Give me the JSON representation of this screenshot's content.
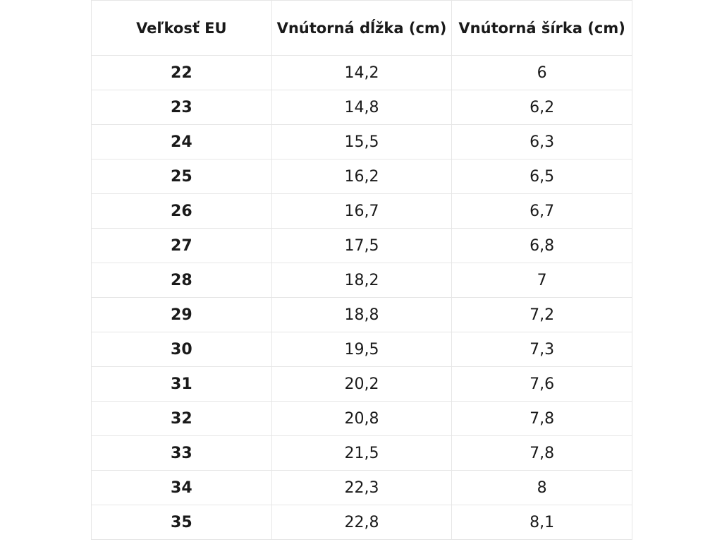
{
  "table": {
    "headers": [
      "Veľkosť EU",
      "Vnútorná dĺžka (cm)",
      "Vnútorná šírka (cm)"
    ],
    "rows": [
      {
        "size": "22",
        "length": "14,2",
        "width": "6"
      },
      {
        "size": "23",
        "length": "14,8",
        "width": "6,2"
      },
      {
        "size": "24",
        "length": "15,5",
        "width": "6,3"
      },
      {
        "size": "25",
        "length": "16,2",
        "width": "6,5"
      },
      {
        "size": "26",
        "length": "16,7",
        "width": "6,7"
      },
      {
        "size": "27",
        "length": "17,5",
        "width": "6,8"
      },
      {
        "size": "28",
        "length": "18,2",
        "width": "7"
      },
      {
        "size": "29",
        "length": "18,8",
        "width": "7,2"
      },
      {
        "size": "30",
        "length": "19,5",
        "width": "7,3"
      },
      {
        "size": "31",
        "length": "20,2",
        "width": "7,6"
      },
      {
        "size": "32",
        "length": "20,8",
        "width": "7,8"
      },
      {
        "size": "33",
        "length": "21,5",
        "width": "7,8"
      },
      {
        "size": "34",
        "length": "22,3",
        "width": "8"
      },
      {
        "size": "35",
        "length": "22,8",
        "width": "8,1"
      }
    ]
  }
}
